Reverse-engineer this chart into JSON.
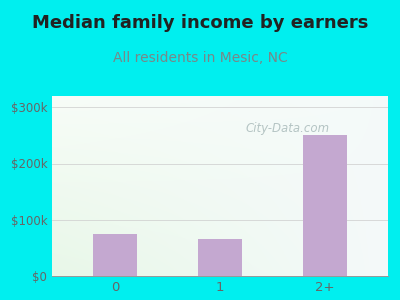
{
  "title": "Median family income by earners",
  "subtitle": "All residents in Mesic, NC",
  "categories": [
    "0",
    "1",
    "2+"
  ],
  "values": [
    75000,
    65000,
    250000
  ],
  "bar_color": "#C4A8D0",
  "background_outer": "#00EFEF",
  "ylim": [
    0,
    320000
  ],
  "yticks": [
    0,
    100000,
    200000,
    300000
  ],
  "ytick_labels": [
    "$0",
    "$100k",
    "$200k",
    "$300k"
  ],
  "title_fontsize": 13,
  "subtitle_fontsize": 10,
  "title_color": "#222222",
  "subtitle_color": "#778888",
  "tick_color": "#666666",
  "watermark_text": "City-Data.com",
  "watermark_color": "#aabbbb",
  "gradient_bottom": "#d8edcf",
  "gradient_top": "#f5fdf5",
  "gradient_right": "#e8eff5"
}
